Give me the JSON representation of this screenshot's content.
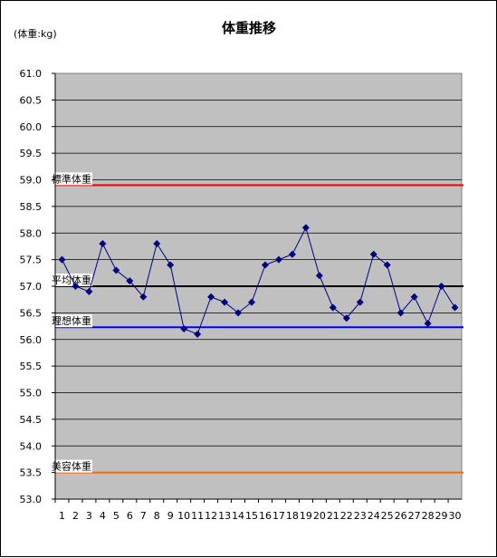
{
  "chart_data": {
    "type": "line",
    "title": "体重推移",
    "unit_label": "(体重:kg)",
    "categories": [
      "1",
      "2",
      "3",
      "4",
      "5",
      "6",
      "7",
      "8",
      "9",
      "10",
      "11",
      "12",
      "13",
      "14",
      "15",
      "16",
      "17",
      "18",
      "19",
      "20",
      "21",
      "22",
      "23",
      "24",
      "25",
      "26",
      "27",
      "28",
      "29",
      "30"
    ],
    "series": [
      {
        "name": "",
        "color": "#000080",
        "values": [
          57.5,
          57.0,
          56.9,
          57.8,
          57.3,
          57.1,
          56.8,
          57.8,
          57.4,
          56.2,
          56.1,
          56.8,
          56.7,
          56.5,
          56.7,
          57.4,
          57.5,
          57.6,
          58.1,
          57.2,
          56.6,
          56.4,
          56.7,
          57.6,
          57.4,
          56.5,
          56.8,
          56.3,
          57.0,
          56.6
        ]
      }
    ],
    "ylim": [
      53.0,
      61.0
    ],
    "ytick_step": 0.5,
    "grid": true,
    "plot_background": "#c0c0c0",
    "reference_lines": [
      {
        "label": "標準体重",
        "value": 58.9,
        "color": "#ff0000"
      },
      {
        "label": "平均体重",
        "value": 57.0,
        "color": "#000000"
      },
      {
        "label": "理想体重",
        "value": 56.23,
        "color": "#0000ff"
      },
      {
        "label": "美容体重",
        "value": 53.5,
        "color": "#ff6600"
      }
    ]
  }
}
